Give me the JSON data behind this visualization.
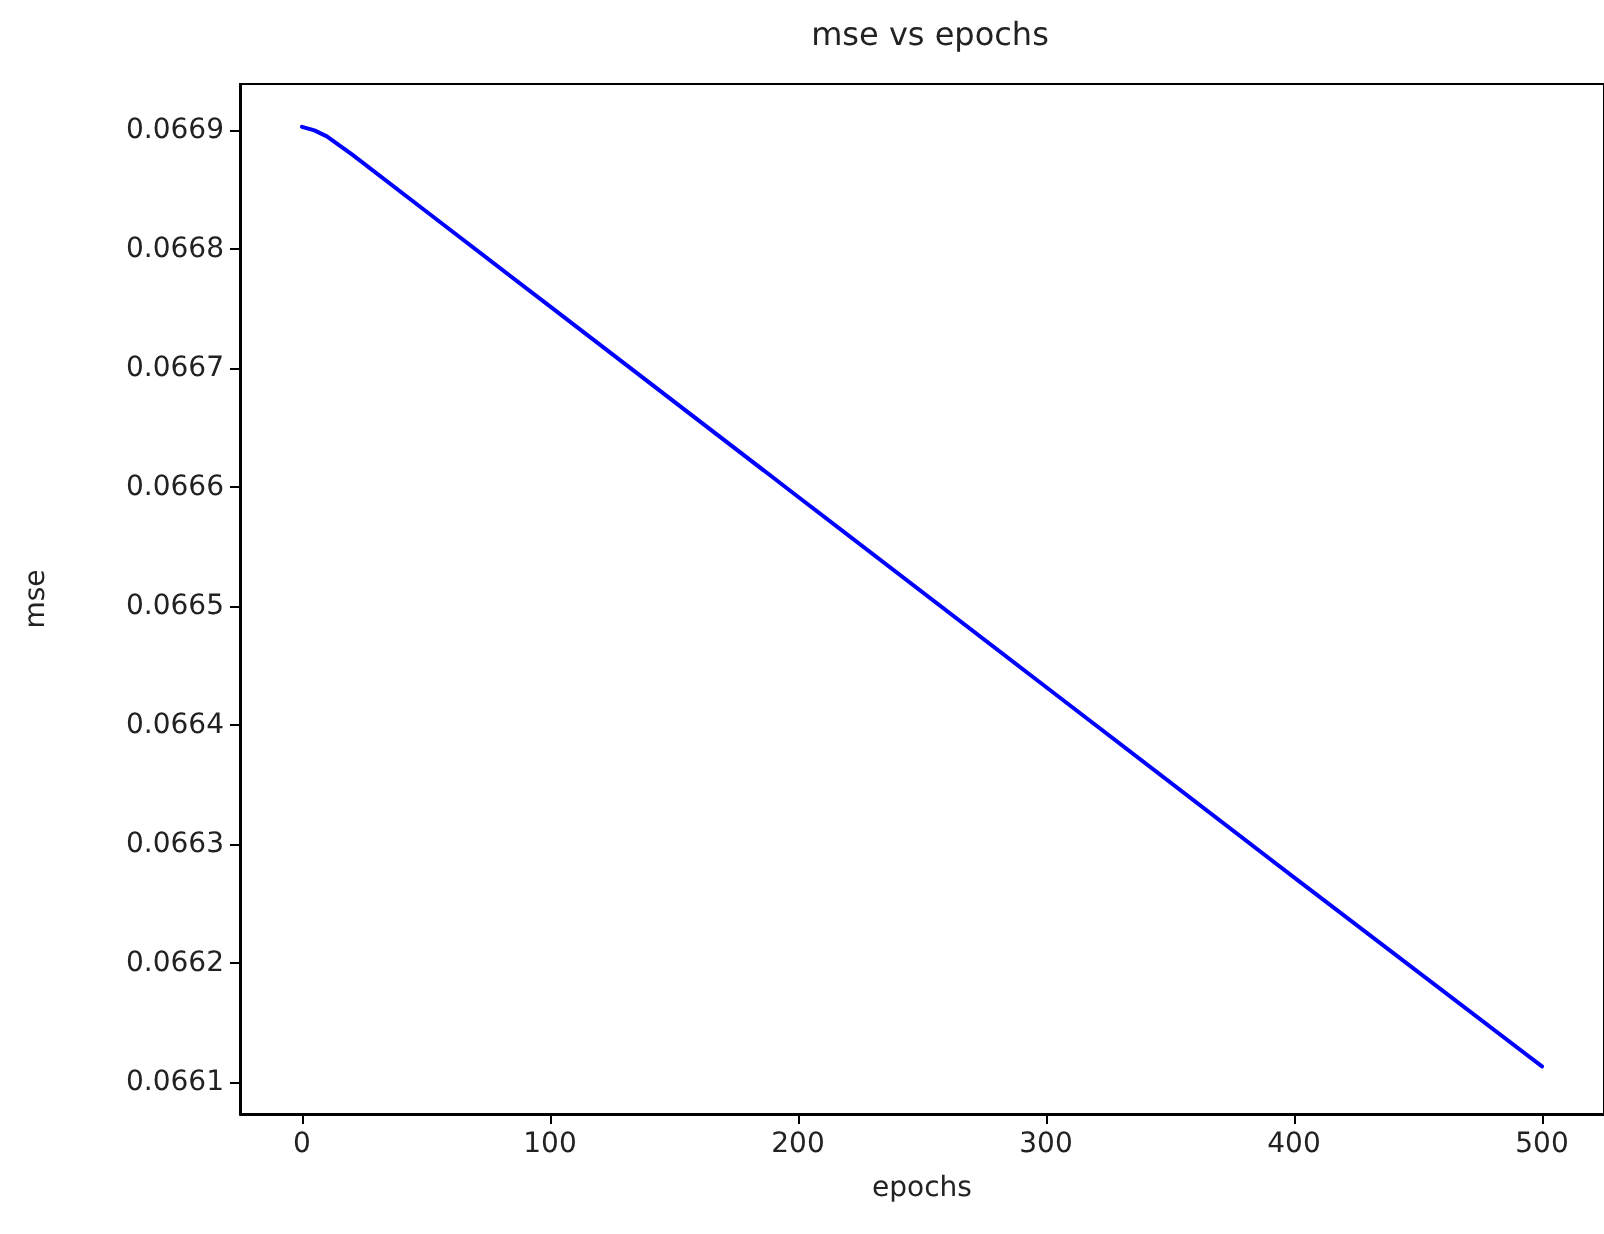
{
  "chart_data": {
    "type": "line",
    "title": "mse vs epochs",
    "xlabel": "epochs",
    "ylabel": "mse",
    "x": [
      0,
      5,
      10,
      20,
      50,
      100,
      200,
      300,
      400,
      500
    ],
    "series": [
      {
        "color": "#0000ff",
        "values": [
          0.066903,
          0.0669,
          0.066895,
          0.06688,
          0.066832,
          0.066752,
          0.066592,
          0.066432,
          0.066272,
          0.066113
        ]
      }
    ],
    "xlim": [
      -25,
      525
    ],
    "xticks": [
      0,
      100,
      200,
      300,
      400,
      500
    ],
    "ylim": [
      0.066073,
      0.066939
    ],
    "yticks": [
      {
        "value": 0.0661,
        "label": "0.0661"
      },
      {
        "value": 0.0662,
        "label": "0.0662"
      },
      {
        "value": 0.0663,
        "label": "0.0663"
      },
      {
        "value": 0.0664,
        "label": "0.0664"
      },
      {
        "value": 0.0665,
        "label": "0.0665"
      },
      {
        "value": 0.0666,
        "label": "0.0666"
      },
      {
        "value": 0.0667,
        "label": "0.0667"
      },
      {
        "value": 0.0668,
        "label": "0.0668"
      },
      {
        "value": 0.0669,
        "label": "0.0669"
      }
    ],
    "grid": false,
    "marker": "none",
    "line_style": "solid"
  }
}
